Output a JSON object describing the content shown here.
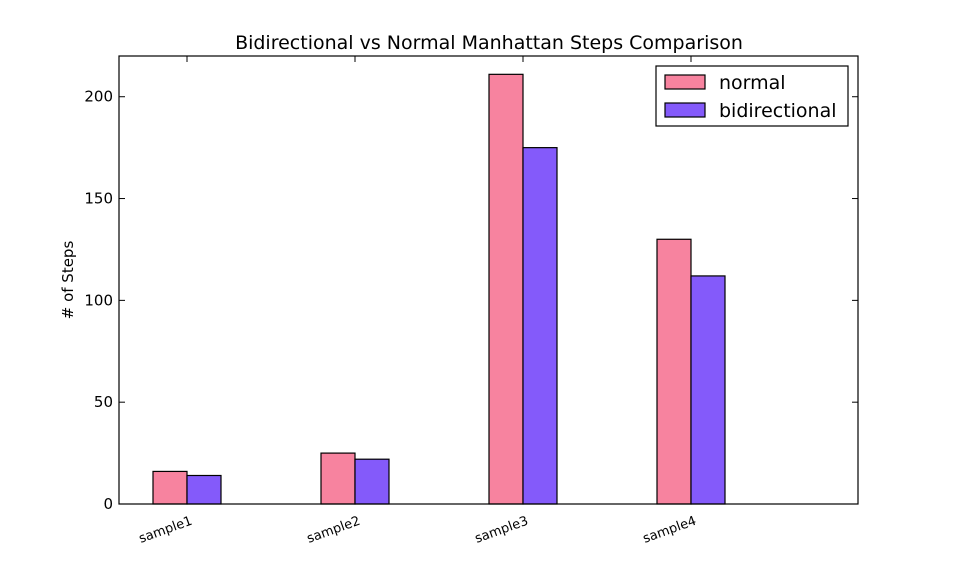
{
  "chart_data": {
    "type": "bar",
    "title": "Bidirectional vs Normal Manhattan Steps Comparison",
    "xlabel": "",
    "ylabel": "# of Steps",
    "categories": [
      "sample1",
      "sample2",
      "sample3",
      "sample4"
    ],
    "series": [
      {
        "name": "normal",
        "color": "#F7839F",
        "values": [
          16,
          25,
          211,
          130
        ]
      },
      {
        "name": "bidirectional",
        "color": "#845AFA",
        "values": [
          14,
          22,
          175,
          112
        ]
      }
    ],
    "ylim": [
      0,
      220
    ],
    "yticks": [
      0,
      50,
      100,
      150,
      200
    ],
    "grid": false,
    "legend_position": "top-right"
  }
}
